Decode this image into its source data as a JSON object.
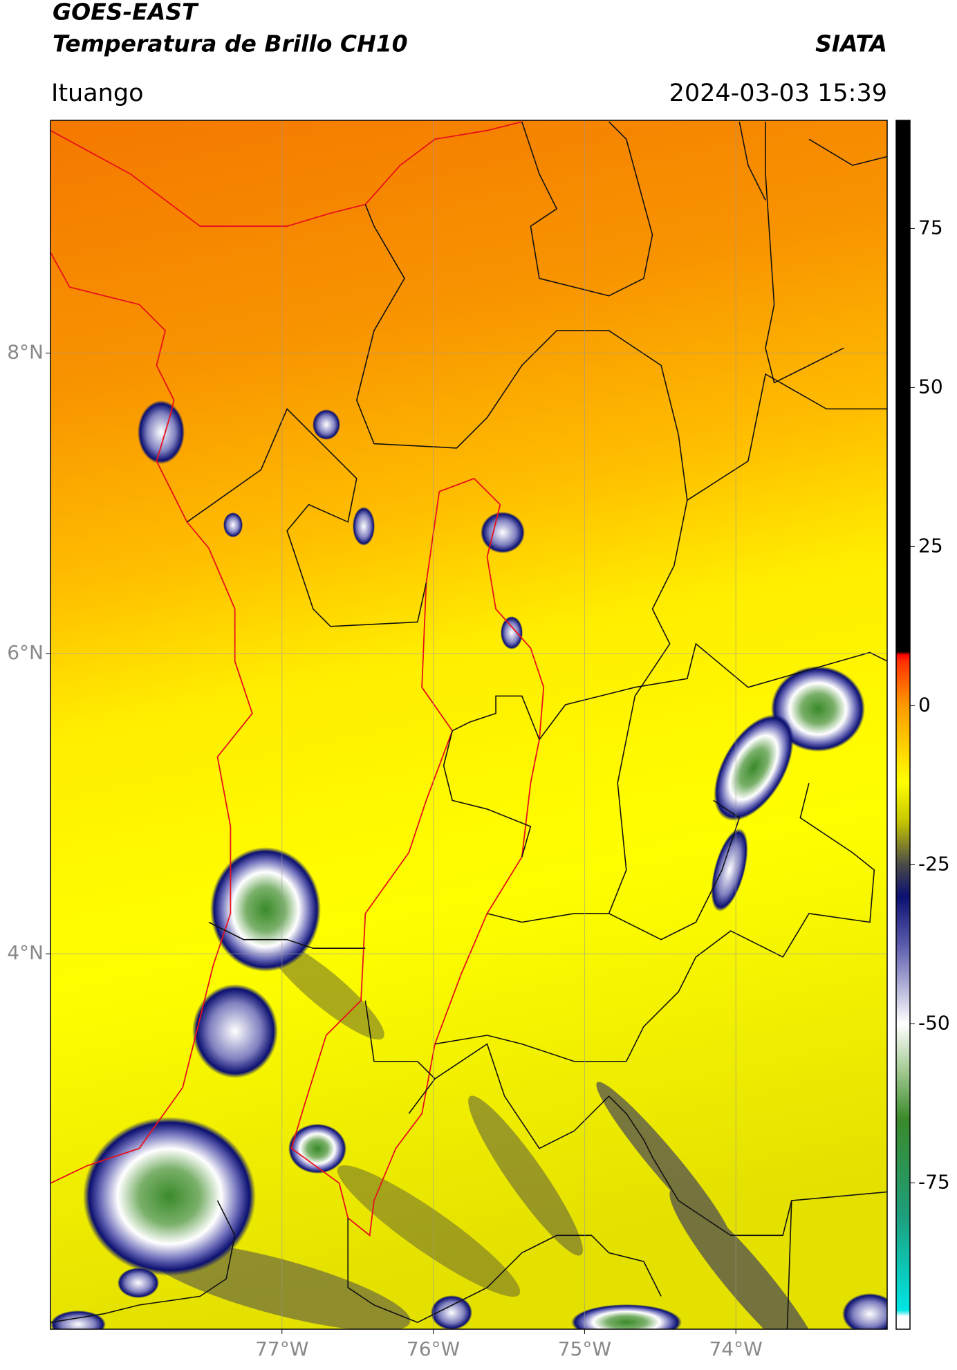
{
  "header": {
    "title": "GOES-EAST",
    "subtitle": "Temperatura de Brillo CH10",
    "source": "SIATA",
    "location": "Ituango",
    "datetime": "2024-03-03 15:39"
  },
  "map": {
    "xlim": [
      -78.53,
      -73.0
    ],
    "ylim": [
      1.5,
      9.55
    ],
    "grid": true,
    "xticks": [
      {
        "value": -77,
        "label": "77°W"
      },
      {
        "value": -76,
        "label": "76°W"
      },
      {
        "value": -75,
        "label": "75°W"
      },
      {
        "value": -74,
        "label": "74°W"
      }
    ],
    "yticks": [
      {
        "value": 4,
        "label": "4°N"
      },
      {
        "value": 6,
        "label": "6°N"
      },
      {
        "value": 8,
        "label": "8°N"
      }
    ]
  },
  "colorbar": {
    "lim": [
      -98,
      92
    ],
    "ticks": [
      -75,
      -50,
      -25,
      0,
      25,
      50,
      75
    ],
    "colormap": [
      [
        -98,
        "#ffffff"
      ],
      [
        -96,
        "#ffffff"
      ],
      [
        -95,
        "#00e5e5"
      ],
      [
        -80,
        "#1e9e7a"
      ],
      [
        -65,
        "#3a8a2a"
      ],
      [
        -57,
        "#a8cc98"
      ],
      [
        -50,
        "#ffffff"
      ],
      [
        -38,
        "#6060b0"
      ],
      [
        -30,
        "#0b1070"
      ],
      [
        -25,
        "#4a4a4a"
      ],
      [
        -18,
        "#c8c800"
      ],
      [
        -12,
        "#ffff00"
      ],
      [
        0,
        "#ff9a00"
      ],
      [
        7,
        "#ff3000"
      ],
      [
        8,
        "#ff0000"
      ],
      [
        8.5,
        "#000000"
      ],
      [
        92,
        "#000000"
      ]
    ]
  }
}
